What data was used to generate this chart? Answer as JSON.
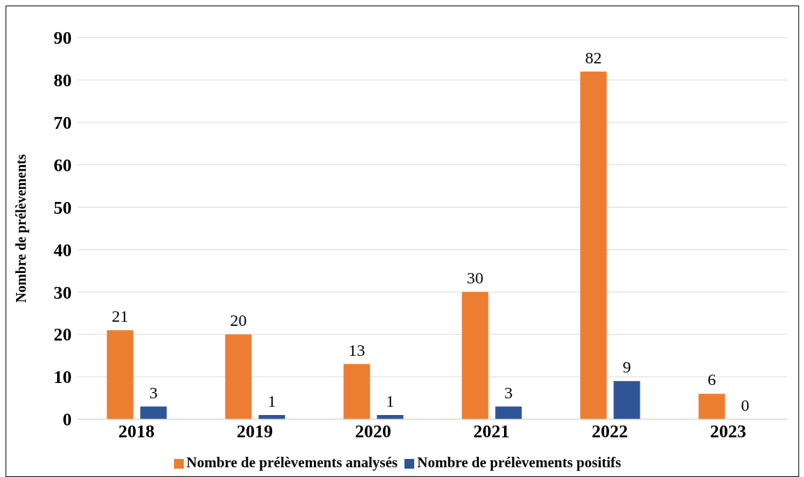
{
  "chart_data": {
    "type": "bar",
    "ylabel": "Nombre de prélèvements",
    "categories": [
      "2018",
      "2019",
      "2020",
      "2021",
      "2022",
      "2023"
    ],
    "series": [
      {
        "name": "Nombre de prélèvements analysés",
        "color": "#ed7d31",
        "values": [
          21,
          20,
          13,
          30,
          82,
          6
        ]
      },
      {
        "name": "Nombre de prélèvements positifs",
        "color": "#2f5597",
        "values": [
          3,
          1,
          1,
          3,
          9,
          0
        ]
      }
    ],
    "ylim": [
      0,
      90
    ],
    "yticks": [
      0,
      10,
      20,
      30,
      40,
      50,
      60,
      70,
      80,
      90
    ],
    "grid": "y",
    "legend": "bottom",
    "data_labels": true
  }
}
